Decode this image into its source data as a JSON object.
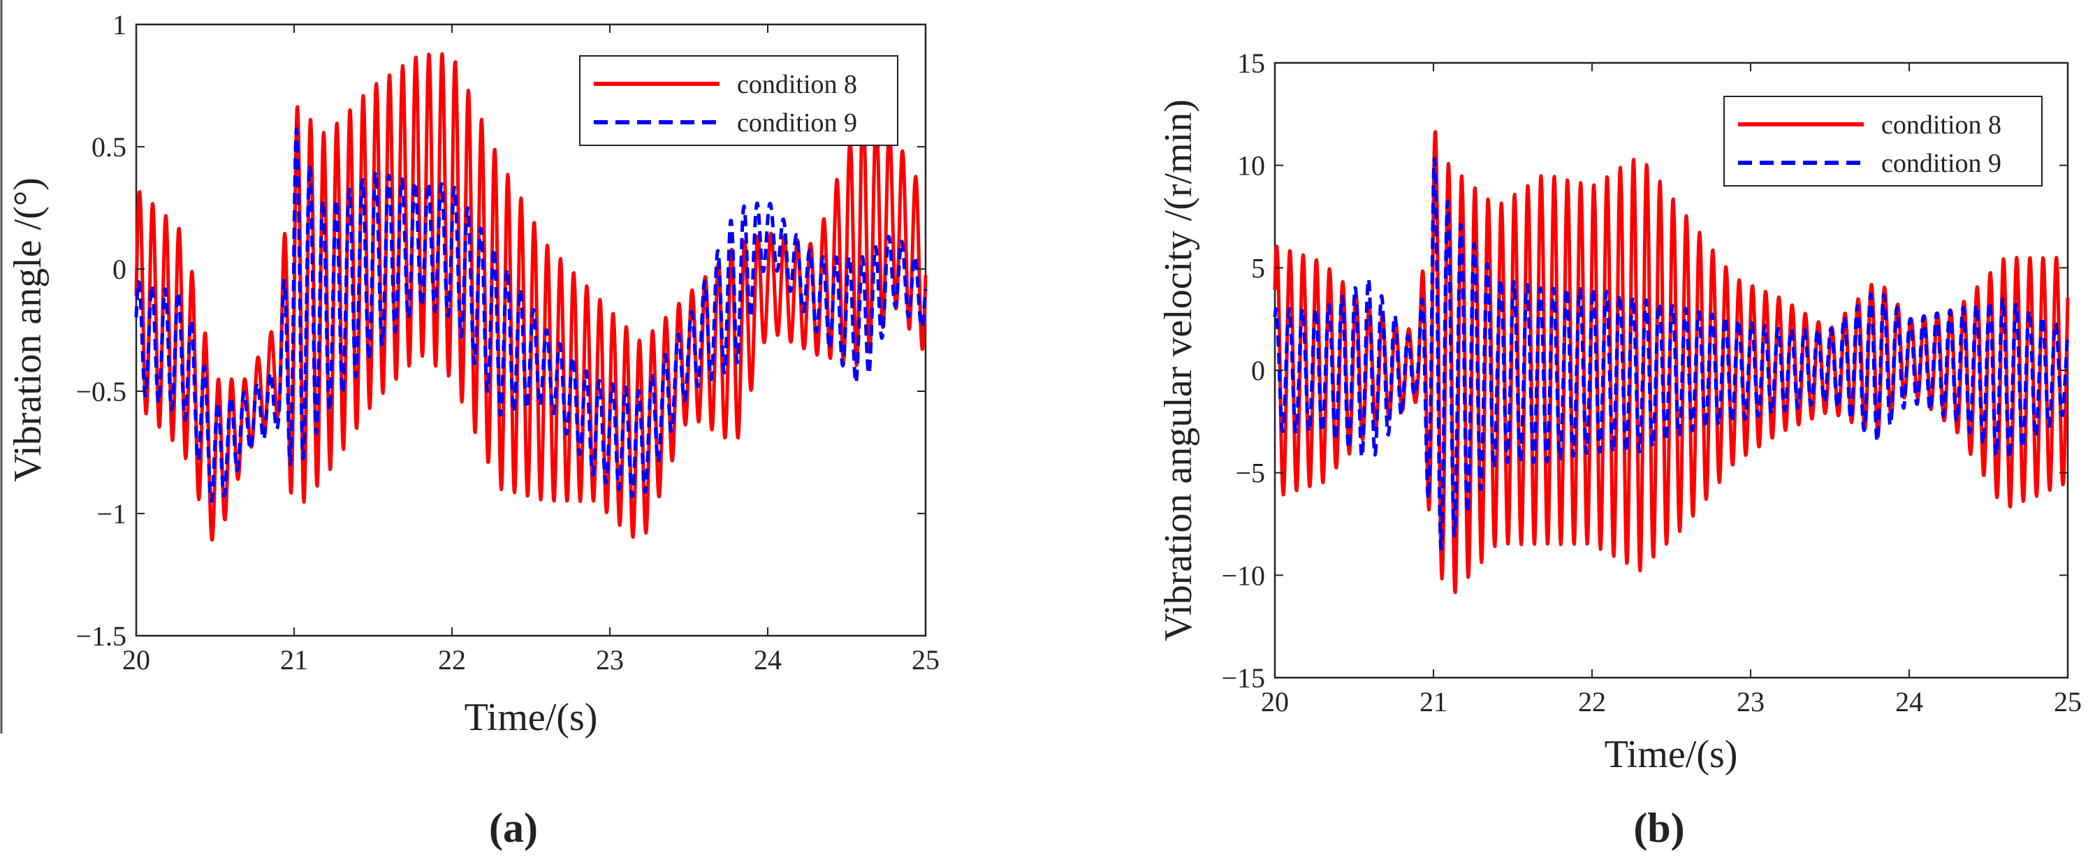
{
  "chart_data": [
    {
      "type": "line",
      "panel": "(a)",
      "title": "",
      "xlabel": "Time/(s)",
      "ylabel": "Vibration angle /(°)",
      "xlim": [
        20,
        25
      ],
      "ylim": [
        -1.5,
        1
      ],
      "xticks": [
        20,
        21,
        22,
        23,
        24,
        25
      ],
      "xtick_labels": [
        "20",
        "21",
        "22",
        "23",
        "24",
        "25"
      ],
      "yticks": [
        -1.5,
        -1,
        -0.5,
        0,
        0.5,
        1
      ],
      "ytick_labels": [
        "−1.5",
        "−1",
        "−0.5",
        "0",
        "0.5",
        "1"
      ],
      "grid": false,
      "legend_position": "top-right",
      "series": [
        {
          "name": "condition 8",
          "color": "#ff0000",
          "style": "solid",
          "envelope": [
            [
              20.0,
              -0.55,
              0.33
            ],
            [
              20.3,
              -0.75,
              0.15
            ],
            [
              20.5,
              -1.15,
              -0.45
            ],
            [
              20.7,
              -0.75,
              -0.45
            ],
            [
              20.9,
              -0.6,
              -0.2
            ],
            [
              21.0,
              -1.0,
              0.68
            ],
            [
              21.2,
              -0.85,
              0.55
            ],
            [
              21.5,
              -0.55,
              0.75
            ],
            [
              21.8,
              -0.35,
              0.88
            ],
            [
              22.0,
              -0.45,
              0.88
            ],
            [
              22.3,
              -0.9,
              0.45
            ],
            [
              22.6,
              -0.95,
              0.1
            ],
            [
              22.9,
              -0.95,
              -0.1
            ],
            [
              23.2,
              -1.13,
              -0.3
            ],
            [
              23.5,
              -0.6,
              -0.1
            ],
            [
              23.8,
              -0.72,
              0.1
            ],
            [
              24.0,
              -0.25,
              0.15
            ],
            [
              24.3,
              -0.35,
              0.1
            ],
            [
              24.6,
              -0.4,
              0.68
            ],
            [
              24.8,
              -0.15,
              0.55
            ],
            [
              25.0,
              -0.35,
              0.3
            ]
          ],
          "cycles_per_second": 12
        },
        {
          "name": "condition 9",
          "color": "#0000ff",
          "style": "dashed",
          "envelope": [
            [
              20.0,
              -0.5,
              -0.05
            ],
            [
              20.3,
              -0.6,
              -0.1
            ],
            [
              20.5,
              -1.0,
              -0.55
            ],
            [
              20.7,
              -0.75,
              -0.5
            ],
            [
              20.9,
              -0.65,
              -0.4
            ],
            [
              21.0,
              -0.85,
              0.6
            ],
            [
              21.2,
              -0.6,
              0.25
            ],
            [
              21.5,
              -0.35,
              0.4
            ],
            [
              21.8,
              -0.15,
              0.35
            ],
            [
              22.0,
              -0.2,
              0.35
            ],
            [
              22.3,
              -0.6,
              0.05
            ],
            [
              22.6,
              -0.55,
              -0.25
            ],
            [
              22.9,
              -0.85,
              -0.45
            ],
            [
              23.2,
              -0.95,
              -0.5
            ],
            [
              23.5,
              -0.5,
              -0.2
            ],
            [
              23.8,
              -0.4,
              0.25
            ],
            [
              24.0,
              0.05,
              0.28
            ],
            [
              24.3,
              -0.25,
              0.05
            ],
            [
              24.6,
              -0.5,
              0.05
            ],
            [
              24.8,
              -0.15,
              0.15
            ],
            [
              25.0,
              -0.25,
              0.0
            ]
          ],
          "cycles_per_second": 12
        }
      ]
    },
    {
      "type": "line",
      "panel": "(b)",
      "title": "",
      "xlabel": "Time/(s)",
      "ylabel": "Vibration angular velocity /(r/min)",
      "xlim": [
        20,
        25
      ],
      "ylim": [
        -15,
        15
      ],
      "xticks": [
        20,
        21,
        22,
        23,
        24,
        25
      ],
      "xtick_labels": [
        "20",
        "21",
        "22",
        "23",
        "24",
        "25"
      ],
      "yticks": [
        -15,
        -10,
        -5,
        0,
        5,
        10,
        15
      ],
      "ytick_labels": [
        "−15",
        "−10",
        "−5",
        "0",
        "5",
        "10",
        "15"
      ],
      "grid": false,
      "legend_position": "top-right",
      "series": [
        {
          "name": "condition 8",
          "color": "#ff0000",
          "style": "solid",
          "envelope": [
            [
              20.0,
              -6.2,
              6.1
            ],
            [
              20.3,
              -5.5,
              5.3
            ],
            [
              20.6,
              -3.0,
              3.0
            ],
            [
              20.9,
              -1.5,
              1.8
            ],
            [
              21.0,
              -9.0,
              11.9
            ],
            [
              21.1,
              -11.2,
              10.0
            ],
            [
              21.4,
              -8.5,
              8.0
            ],
            [
              21.7,
              -8.5,
              9.6
            ],
            [
              22.0,
              -8.5,
              9.0
            ],
            [
              22.3,
              -9.8,
              10.5
            ],
            [
              22.6,
              -7.5,
              7.5
            ],
            [
              22.9,
              -4.5,
              4.5
            ],
            [
              23.2,
              -3.0,
              3.5
            ],
            [
              23.5,
              -2.0,
              2.0
            ],
            [
              23.8,
              -3.2,
              4.5
            ],
            [
              24.0,
              -1.0,
              2.5
            ],
            [
              24.3,
              -3.0,
              3.0
            ],
            [
              24.6,
              -6.8,
              5.5
            ],
            [
              25.0,
              -5.5,
              5.5
            ]
          ],
          "cycles_per_second": 12
        },
        {
          "name": "condition 9",
          "color": "#0000ff",
          "style": "dashed",
          "envelope": [
            [
              20.0,
              -3.0,
              3.0
            ],
            [
              20.3,
              -3.0,
              3.0
            ],
            [
              20.6,
              -4.5,
              4.5
            ],
            [
              20.9,
              -1.0,
              1.0
            ],
            [
              21.0,
              -9.0,
              10.5
            ],
            [
              21.1,
              -8.5,
              8.0
            ],
            [
              21.4,
              -4.5,
              4.5
            ],
            [
              21.7,
              -4.5,
              4.0
            ],
            [
              22.0,
              -4.0,
              4.0
            ],
            [
              22.3,
              -4.0,
              3.5
            ],
            [
              22.6,
              -3.0,
              3.0
            ],
            [
              22.9,
              -2.5,
              2.5
            ],
            [
              23.2,
              -2.0,
              2.0
            ],
            [
              23.5,
              -1.5,
              2.0
            ],
            [
              23.8,
              -3.5,
              4.0
            ],
            [
              24.0,
              -1.5,
              2.5
            ],
            [
              24.3,
              -2.5,
              3.0
            ],
            [
              24.6,
              -4.5,
              3.5
            ],
            [
              25.0,
              -2.0,
              2.0
            ]
          ],
          "cycles_per_second": 12
        }
      ]
    }
  ]
}
